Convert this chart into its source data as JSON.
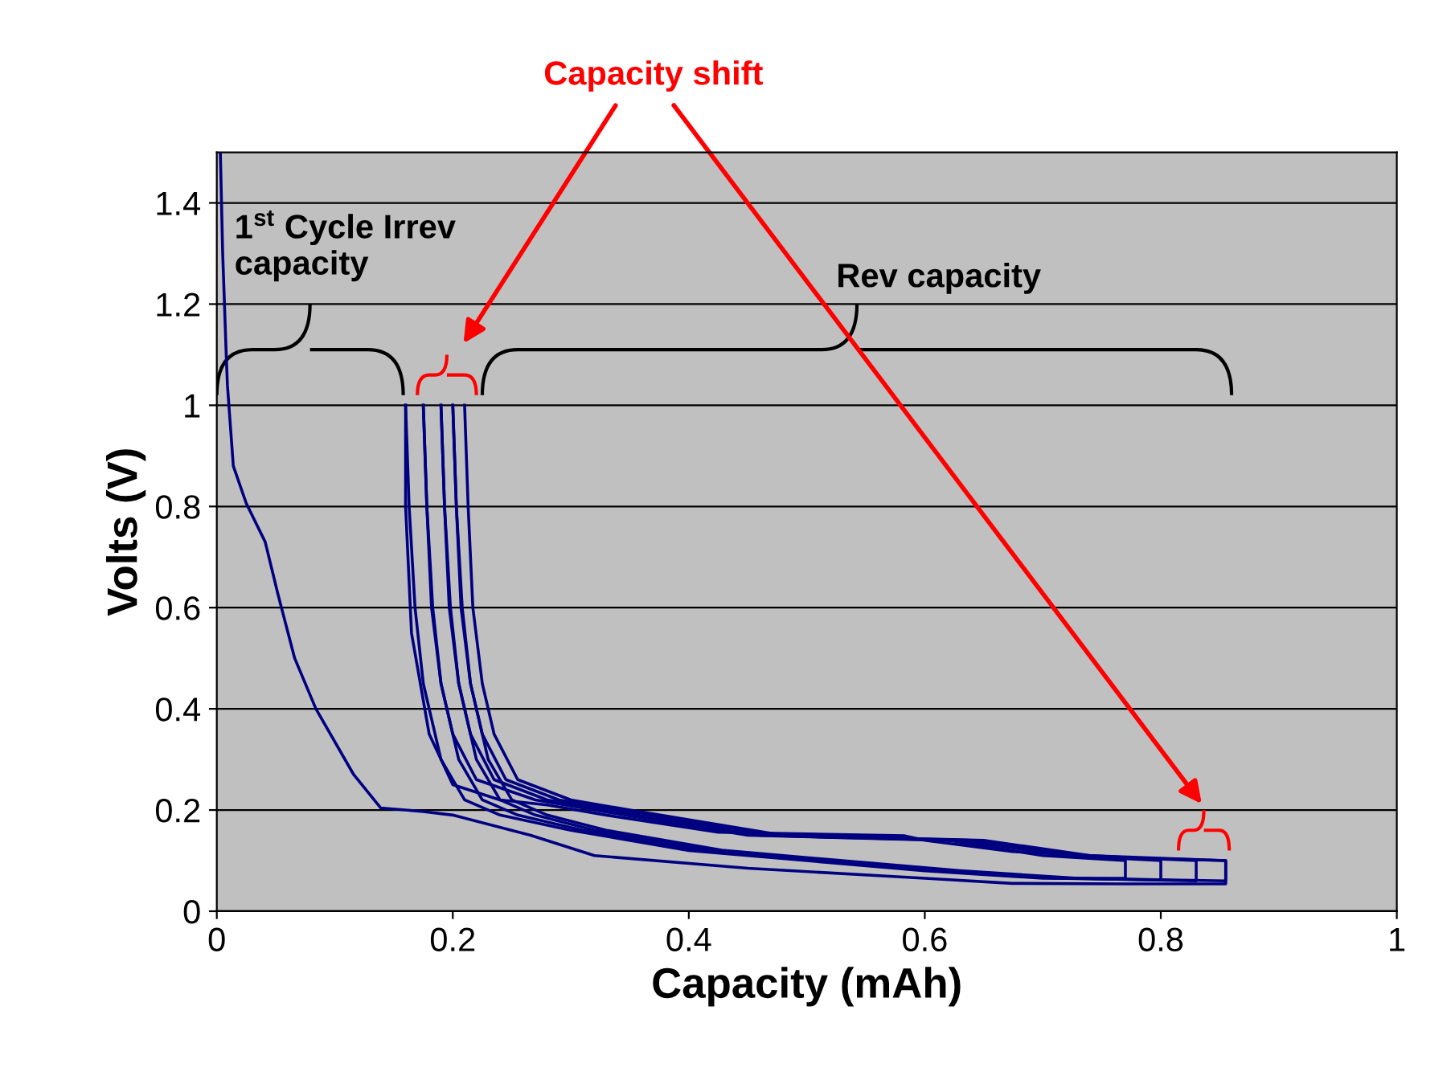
{
  "chart_data": {
    "type": "line",
    "xlabel": "Capacity (mAh)",
    "ylabel": "Volts (V)",
    "xlim": [
      0,
      1
    ],
    "xticks": [
      0,
      0.2,
      0.4,
      0.6,
      0.8,
      1
    ],
    "ylim": [
      0,
      1.5
    ],
    "yticks": [
      0,
      0.2,
      0.4,
      0.6,
      0.8,
      1,
      1.2,
      1.4
    ],
    "grid": "y",
    "legend": false,
    "marker": "none",
    "line_style": "solid",
    "annotations": [
      "Capacity shift",
      "1$^{st}$ Cycle Irrev\ncapacity",
      "Rev capacity"
    ],
    "series": [
      {
        "color": "#000080",
        "x": [
          0.003,
          0.005,
          0.008,
          0.009,
          0.014,
          0.025,
          0.041,
          0.052,
          0.066,
          0.084,
          0.116,
          0.139,
          0.175,
          0.2,
          0.266,
          0.32,
          0.45,
          0.6,
          0.674,
          0.77,
          0.855,
          0.855,
          0.78,
          0.674,
          0.6,
          0.583,
          0.425,
          0.33,
          0.28,
          0.24,
          0.2,
          0.18,
          0.165,
          0.16,
          0.16
        ],
        "values": [
          1.5,
          1.3,
          1.1,
          1.04,
          0.88,
          0.806,
          0.73,
          0.625,
          0.5,
          0.4,
          0.27,
          0.204,
          0.197,
          0.19,
          0.15,
          0.11,
          0.085,
          0.065,
          0.055,
          0.054,
          0.054,
          0.1,
          0.105,
          0.118,
          0.14,
          0.149,
          0.156,
          0.19,
          0.21,
          0.22,
          0.25,
          0.35,
          0.55,
          0.8,
          1.0
        ]
      },
      {
        "color": "#000080",
        "x": [
          0.16,
          0.163,
          0.168,
          0.175,
          0.19,
          0.21,
          0.24,
          0.3,
          0.4,
          0.6,
          0.7,
          0.77,
          0.77,
          0.7,
          0.62,
          0.45,
          0.32,
          0.27,
          0.22,
          0.2,
          0.19,
          0.182,
          0.178,
          0.175
        ],
        "values": [
          1.0,
          0.8,
          0.6,
          0.45,
          0.3,
          0.22,
          0.19,
          0.16,
          0.12,
          0.08,
          0.065,
          0.065,
          0.1,
          0.11,
          0.14,
          0.15,
          0.2,
          0.22,
          0.26,
          0.35,
          0.45,
          0.6,
          0.8,
          1.0
        ]
      },
      {
        "color": "#000080",
        "x": [
          0.175,
          0.178,
          0.183,
          0.19,
          0.205,
          0.225,
          0.255,
          0.31,
          0.41,
          0.61,
          0.71,
          0.8,
          0.8,
          0.72,
          0.63,
          0.46,
          0.33,
          0.28,
          0.235,
          0.215,
          0.205,
          0.197,
          0.193,
          0.19
        ],
        "values": [
          1.0,
          0.8,
          0.6,
          0.45,
          0.3,
          0.22,
          0.19,
          0.16,
          0.12,
          0.08,
          0.065,
          0.062,
          0.1,
          0.11,
          0.14,
          0.15,
          0.2,
          0.22,
          0.26,
          0.35,
          0.45,
          0.6,
          0.8,
          1.0
        ]
      },
      {
        "color": "#000080",
        "x": [
          0.19,
          0.193,
          0.198,
          0.205,
          0.22,
          0.24,
          0.27,
          0.32,
          0.42,
          0.62,
          0.72,
          0.83,
          0.83,
          0.73,
          0.64,
          0.47,
          0.34,
          0.29,
          0.245,
          0.225,
          0.215,
          0.207,
          0.203,
          0.2
        ],
        "values": [
          1.0,
          0.8,
          0.6,
          0.45,
          0.3,
          0.22,
          0.19,
          0.16,
          0.12,
          0.08,
          0.065,
          0.06,
          0.1,
          0.11,
          0.14,
          0.15,
          0.2,
          0.22,
          0.26,
          0.35,
          0.45,
          0.6,
          0.8,
          1.0
        ]
      },
      {
        "color": "#000080",
        "x": [
          0.2,
          0.203,
          0.208,
          0.215,
          0.23,
          0.25,
          0.28,
          0.33,
          0.43,
          0.63,
          0.73,
          0.855,
          0.855,
          0.74,
          0.65,
          0.48,
          0.35,
          0.3,
          0.255,
          0.235,
          0.225,
          0.217,
          0.213,
          0.21
        ],
        "values": [
          1.0,
          0.8,
          0.6,
          0.45,
          0.3,
          0.22,
          0.19,
          0.16,
          0.12,
          0.08,
          0.065,
          0.06,
          0.1,
          0.11,
          0.14,
          0.15,
          0.2,
          0.22,
          0.26,
          0.35,
          0.45,
          0.6,
          0.8,
          1.0
        ]
      }
    ]
  }
}
